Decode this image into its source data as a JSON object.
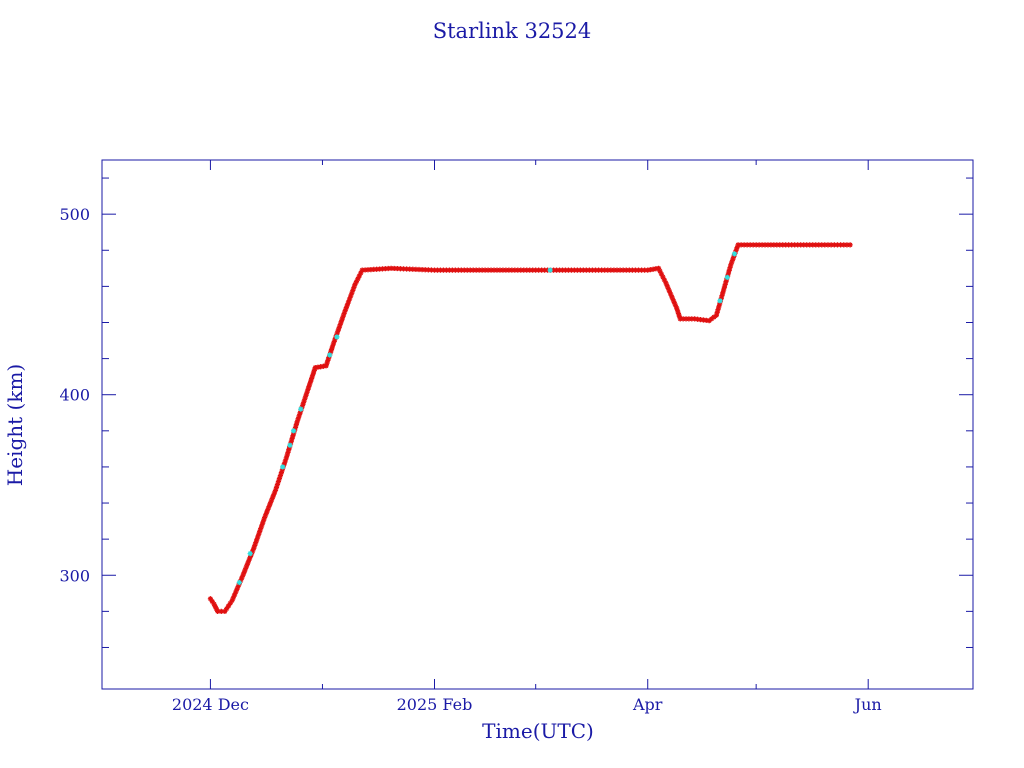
{
  "chart_data": {
    "type": "scatter",
    "title": "Starlink 32524",
    "xlabel": "Time(UTC)",
    "ylabel": "Height (km)",
    "x_type": "date",
    "xlim": [
      "2024-11-01",
      "2025-06-30"
    ],
    "ylim": [
      237,
      530
    ],
    "x_tick_labels": [
      {
        "date": "2024-12-01",
        "label": "2024 Dec"
      },
      {
        "date": "2025-02-01",
        "label": "2025 Feb"
      },
      {
        "date": "2025-04-01",
        "label": "Apr"
      },
      {
        "date": "2025-06-01",
        "label": "Jun"
      }
    ],
    "x_minor_ticks": [
      "2024-11-01",
      "2024-12-01",
      "2025-01-01",
      "2025-02-01",
      "2025-03-01",
      "2025-04-01",
      "2025-05-01",
      "2025-06-01"
    ],
    "y_ticks": [
      300,
      400,
      500
    ],
    "grid": false,
    "colors": {
      "axis": "#1a1aa6",
      "primary_marker": "#e01010",
      "secondary_marker": "#30e0e0",
      "line": "#000000"
    },
    "series": [
      {
        "values": [
          {
            "x": "2024-12-01",
            "y": 287
          },
          {
            "x": "2024-12-02",
            "y": 284
          },
          {
            "x": "2024-12-03",
            "y": 280
          },
          {
            "x": "2024-12-05",
            "y": 280
          },
          {
            "x": "2024-12-07",
            "y": 286
          },
          {
            "x": "2024-12-10",
            "y": 300
          },
          {
            "x": "2024-12-13",
            "y": 315
          },
          {
            "x": "2024-12-16",
            "y": 332
          },
          {
            "x": "2024-12-19",
            "y": 347
          },
          {
            "x": "2024-12-22",
            "y": 365
          },
          {
            "x": "2024-12-25",
            "y": 385
          },
          {
            "x": "2024-12-28",
            "y": 403
          },
          {
            "x": "2024-12-30",
            "y": 415
          },
          {
            "x": "2025-01-02",
            "y": 416
          },
          {
            "x": "2025-01-04",
            "y": 428
          },
          {
            "x": "2025-01-07",
            "y": 445
          },
          {
            "x": "2025-01-10",
            "y": 461
          },
          {
            "x": "2025-01-12",
            "y": 469
          },
          {
            "x": "2025-01-20",
            "y": 470
          },
          {
            "x": "2025-02-01",
            "y": 469
          },
          {
            "x": "2025-02-15",
            "y": 469
          },
          {
            "x": "2025-03-01",
            "y": 469
          },
          {
            "x": "2025-03-15",
            "y": 469
          },
          {
            "x": "2025-04-01",
            "y": 469
          },
          {
            "x": "2025-04-04",
            "y": 470
          },
          {
            "x": "2025-04-06",
            "y": 462
          },
          {
            "x": "2025-04-09",
            "y": 448
          },
          {
            "x": "2025-04-10",
            "y": 442
          },
          {
            "x": "2025-04-14",
            "y": 442
          },
          {
            "x": "2025-04-18",
            "y": 441
          },
          {
            "x": "2025-04-20",
            "y": 444
          },
          {
            "x": "2025-04-22",
            "y": 458
          },
          {
            "x": "2025-04-24",
            "y": 472
          },
          {
            "x": "2025-04-26",
            "y": 483
          },
          {
            "x": "2025-05-01",
            "y": 483
          },
          {
            "x": "2025-05-10",
            "y": 483
          },
          {
            "x": "2025-05-20",
            "y": 483
          },
          {
            "x": "2025-05-27",
            "y": 483
          }
        ]
      },
      {
        "values": [
          {
            "x": "2024-12-09",
            "y": 296
          },
          {
            "x": "2024-12-12",
            "y": 312
          },
          {
            "x": "2024-12-21",
            "y": 360
          },
          {
            "x": "2024-12-23",
            "y": 372
          },
          {
            "x": "2024-12-24",
            "y": 380
          },
          {
            "x": "2024-12-26",
            "y": 392
          },
          {
            "x": "2025-01-03",
            "y": 422
          },
          {
            "x": "2025-01-05",
            "y": 432
          },
          {
            "x": "2025-03-05",
            "y": 469
          },
          {
            "x": "2025-04-21",
            "y": 452
          },
          {
            "x": "2025-04-23",
            "y": 465
          },
          {
            "x": "2025-04-25",
            "y": 478
          }
        ]
      }
    ]
  }
}
